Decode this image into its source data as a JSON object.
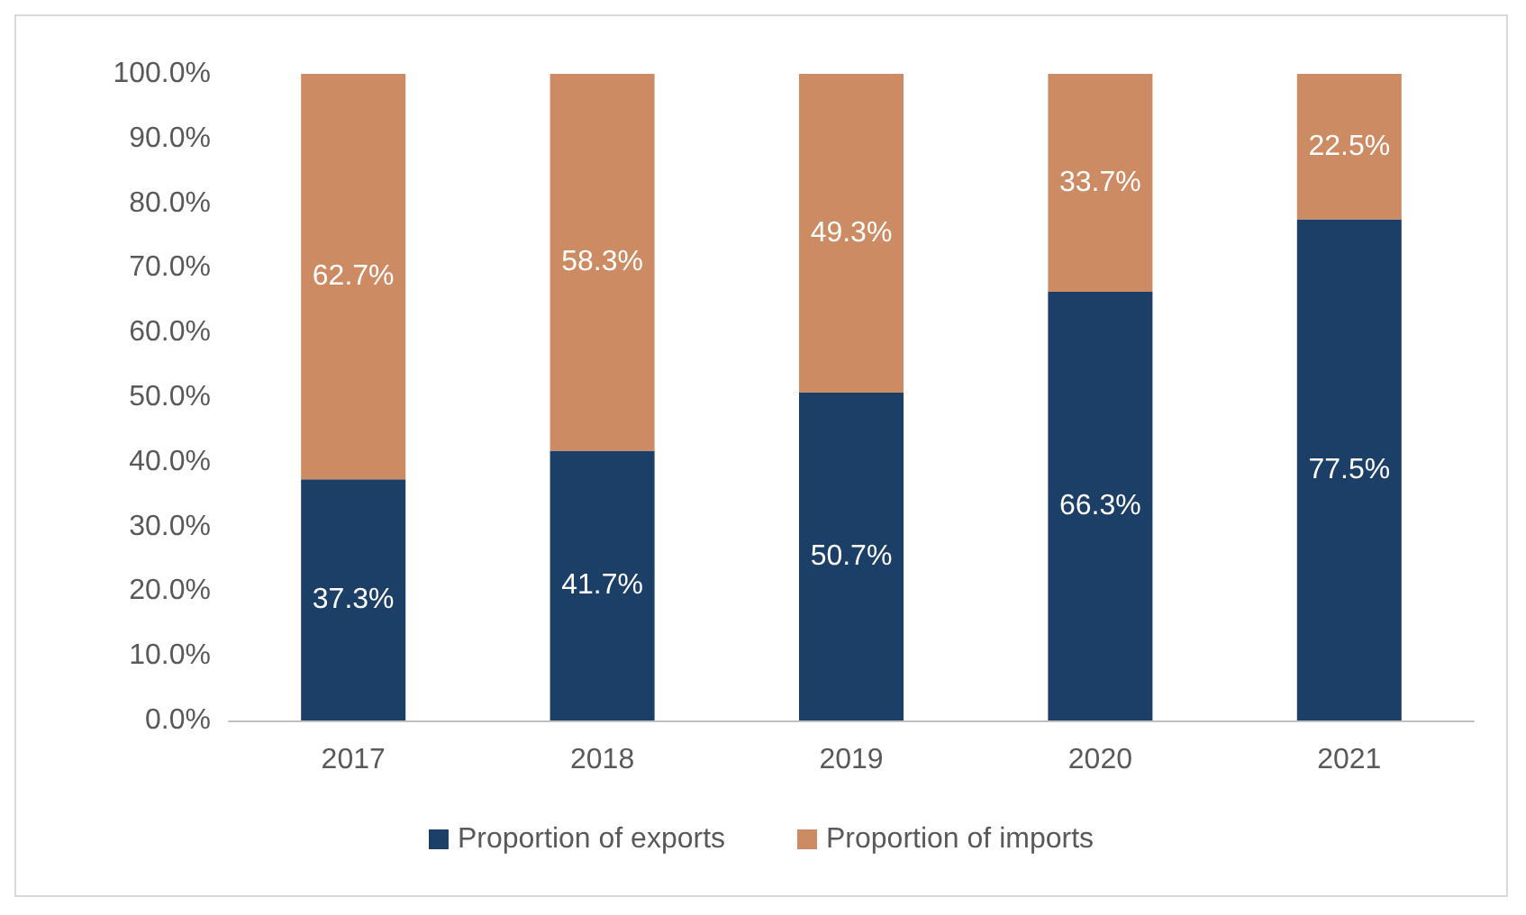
{
  "chart_data": {
    "type": "bar",
    "stacked": true,
    "categories": [
      "2017",
      "2018",
      "2019",
      "2020",
      "2021"
    ],
    "series": [
      {
        "name": "Proportion of exports",
        "color": "#1b3f66",
        "values": [
          37.3,
          41.7,
          50.7,
          66.3,
          77.5
        ],
        "value_labels": [
          "37.3%",
          "41.7%",
          "50.7%",
          "66.3%",
          "77.5%"
        ]
      },
      {
        "name": "Proportion of imports",
        "color": "#cc8b62",
        "values": [
          62.7,
          58.3,
          49.3,
          33.7,
          22.5
        ],
        "value_labels": [
          "62.7%",
          "58.3%",
          "49.3%",
          "33.7%",
          "22.5%"
        ]
      }
    ],
    "ylim": [
      0,
      100
    ],
    "yticks": [
      {
        "value": 0,
        "label": "0.0%"
      },
      {
        "value": 10,
        "label": "10.0%"
      },
      {
        "value": 20,
        "label": "20.0%"
      },
      {
        "value": 30,
        "label": "30.0%"
      },
      {
        "value": 40,
        "label": "40.0%"
      },
      {
        "value": 50,
        "label": "50.0%"
      },
      {
        "value": 60,
        "label": "60.0%"
      },
      {
        "value": 70,
        "label": "70.0%"
      },
      {
        "value": 80,
        "label": "80.0%"
      },
      {
        "value": 90,
        "label": "90.0%"
      },
      {
        "value": 100,
        "label": "100.0%"
      }
    ],
    "grid": false,
    "legend": "bottom"
  }
}
